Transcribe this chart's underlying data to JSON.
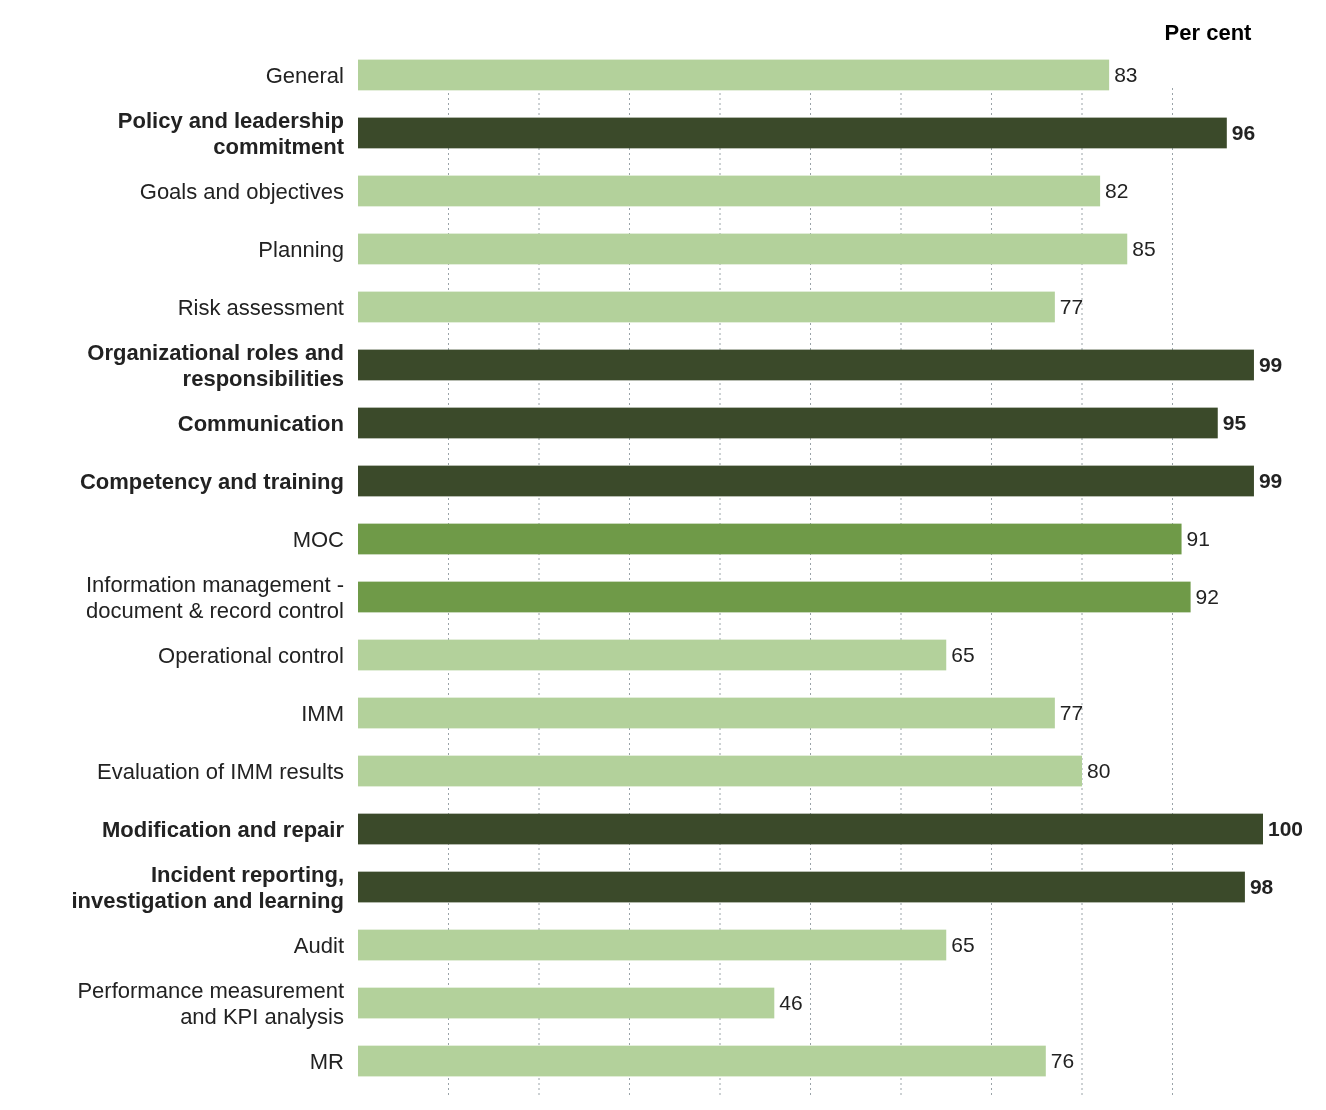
{
  "chart_data": {
    "type": "bar",
    "orientation": "horizontal",
    "xlabel": "Per cent",
    "categories": [
      "General",
      "Policy and leadership commitment",
      "Goals and objectives",
      "Planning",
      "Risk assessment",
      "Organizational roles and responsibilities",
      "Communication",
      "Competency and training",
      "MOC",
      "Information management - document & record control",
      "Operational control",
      "IMM",
      "Evaluation of IMM results",
      "Modification and repair",
      "Incident reporting, investigation and learning",
      "Audit",
      "Performance measurement and KPI analysis",
      "MR"
    ],
    "values": [
      83,
      96,
      82,
      85,
      77,
      99,
      95,
      99,
      91,
      92,
      65,
      77,
      80,
      100,
      98,
      65,
      46,
      76
    ],
    "colors": [
      "#b3d19b",
      "#3b4a2a",
      "#b3d19b",
      "#b3d19b",
      "#b3d19b",
      "#3b4a2a",
      "#3b4a2a",
      "#3b4a2a",
      "#6f9a48",
      "#6f9a48",
      "#b3d19b",
      "#b3d19b",
      "#b3d19b",
      "#3b4a2a",
      "#3b4a2a",
      "#b3d19b",
      "#b3d19b",
      "#b3d19b"
    ],
    "xlim": [
      0,
      100
    ],
    "xticks": [
      {
        "value": 10,
        "label": null
      },
      {
        "value": 20,
        "label": null
      },
      {
        "value": 30,
        "label": null
      },
      {
        "value": 40,
        "label": null
      },
      {
        "value": 50,
        "label": null
      },
      {
        "value": 60,
        "label": null
      },
      {
        "value": 70,
        "label": null
      },
      {
        "value": 80,
        "label": null
      },
      {
        "value": 90,
        "label": null
      }
    ],
    "grid": "x",
    "data_labels": true,
    "tick_labels": "y"
  }
}
